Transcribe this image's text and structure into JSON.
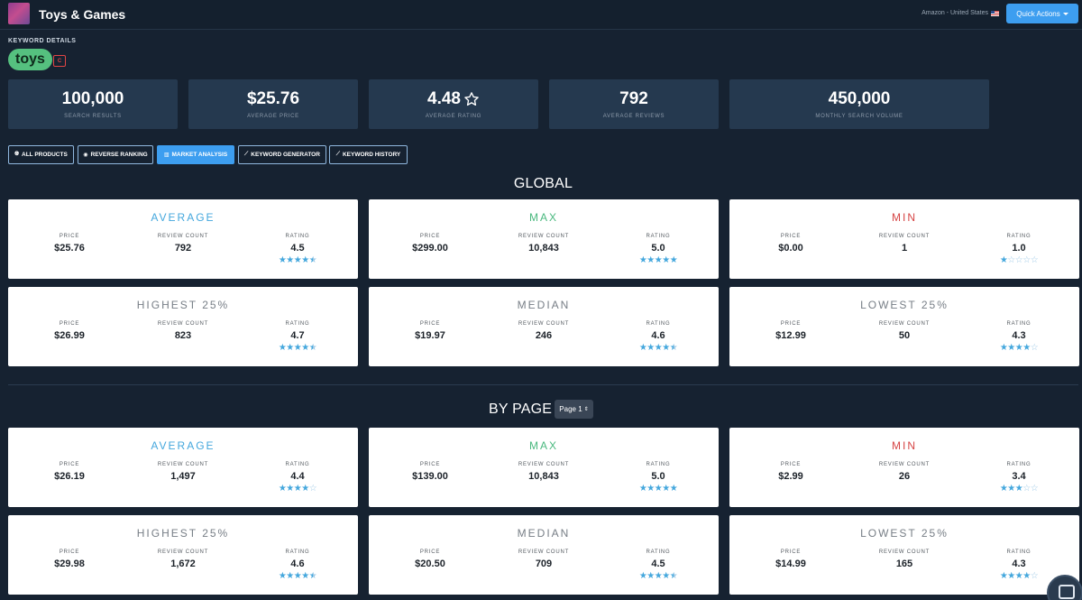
{
  "header": {
    "title": "Toys & Games",
    "marketplace": "Amazon - United States",
    "quick_actions": "Quick Actions"
  },
  "keyword": {
    "section_label": "KEYWORD DETAILS",
    "term": "toys",
    "badge": "C"
  },
  "stats": [
    {
      "value": "100,000",
      "label": "SEARCH RESULTS"
    },
    {
      "value": "$25.76",
      "label": "AVERAGE PRICE"
    },
    {
      "value": "4.48",
      "label": "AVERAGE RATING",
      "icon": "star-outline-icon"
    },
    {
      "value": "792",
      "label": "AVERAGE REVIEWS"
    },
    {
      "value": "450,000",
      "label": "MONTHLY SEARCH VOLUME"
    }
  ],
  "tabs": [
    {
      "label": "ALL PRODUCTS",
      "icon": "globe-icon",
      "glyph": "🌐︎"
    },
    {
      "label": "REVERSE RANKING",
      "icon": "binoculars-icon",
      "glyph": "◉"
    },
    {
      "label": "MARKET ANALYSIS",
      "icon": "bar-chart-icon",
      "glyph": "▥",
      "active": true
    },
    {
      "label": "KEYWORD GENERATOR",
      "icon": "wand-icon",
      "glyph": "⟋"
    },
    {
      "label": "KEYWORD HISTORY",
      "icon": "wand-icon",
      "glyph": "⟋"
    }
  ],
  "colors": {
    "accent_blue": "#44a7dd",
    "max_green": "#49b87e",
    "min_red": "#d64545",
    "button_blue": "#3d9ef0"
  },
  "column_labels": {
    "price": "PRICE",
    "reviews": "REVIEW COUNT",
    "rating": "RATING"
  },
  "global": {
    "title": "GLOBAL",
    "cards": [
      {
        "title": "AVERAGE",
        "price": "$25.76",
        "reviews": "792",
        "rating": "4.5",
        "stars": 4.5
      },
      {
        "title": "MAX",
        "price": "$299.00",
        "reviews": "10,843",
        "rating": "5.0",
        "stars": 5
      },
      {
        "title": "MIN",
        "price": "$0.00",
        "reviews": "1",
        "rating": "1.0",
        "stars": 1
      },
      {
        "title": "HIGHEST 25%",
        "price": "$26.99",
        "reviews": "823",
        "rating": "4.7",
        "stars": 4.5
      },
      {
        "title": "MEDIAN",
        "price": "$19.97",
        "reviews": "246",
        "rating": "4.6",
        "stars": 4.5
      },
      {
        "title": "LOWEST 25%",
        "price": "$12.99",
        "reviews": "50",
        "rating": "4.3",
        "stars": 4
      }
    ]
  },
  "by_page": {
    "title": "BY PAGE",
    "page_select": "Page 1",
    "cards": [
      {
        "title": "AVERAGE",
        "price": "$26.19",
        "reviews": "1,497",
        "rating": "4.4",
        "stars": 4
      },
      {
        "title": "MAX",
        "price": "$139.00",
        "reviews": "10,843",
        "rating": "5.0",
        "stars": 5
      },
      {
        "title": "MIN",
        "price": "$2.99",
        "reviews": "26",
        "rating": "3.4",
        "stars": 3
      },
      {
        "title": "HIGHEST 25%",
        "price": "$29.98",
        "reviews": "1,672",
        "rating": "4.6",
        "stars": 4.5
      },
      {
        "title": "MEDIAN",
        "price": "$20.50",
        "reviews": "709",
        "rating": "4.5",
        "stars": 4.5
      },
      {
        "title": "LOWEST 25%",
        "price": "$14.99",
        "reviews": "165",
        "rating": "4.3",
        "stars": 4
      }
    ]
  }
}
